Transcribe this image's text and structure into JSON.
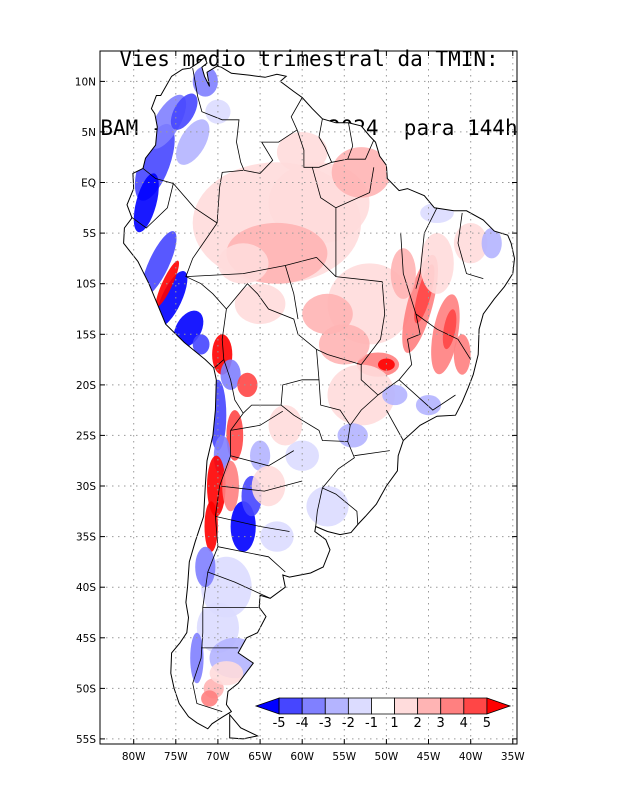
{
  "title": {
    "line1": "Vies medio trimestral da TMIN:",
    "line2": "BAM - SAMet 28/08/2024  para 144h"
  },
  "map": {
    "lon_range": [
      -84,
      -34.5
    ],
    "lat_range": [
      -55.5,
      13
    ],
    "grid": true,
    "grid_style": "dotted",
    "lat_ticks": [
      {
        "value": 10,
        "label": "10N"
      },
      {
        "value": 5,
        "label": "5N"
      },
      {
        "value": 0,
        "label": "EQ"
      },
      {
        "value": -5,
        "label": "5S"
      },
      {
        "value": -10,
        "label": "10S"
      },
      {
        "value": -15,
        "label": "15S"
      },
      {
        "value": -20,
        "label": "20S"
      },
      {
        "value": -25,
        "label": "25S"
      },
      {
        "value": -30,
        "label": "30S"
      },
      {
        "value": -35,
        "label": "35S"
      },
      {
        "value": -40,
        "label": "40S"
      },
      {
        "value": -45,
        "label": "45S"
      },
      {
        "value": -50,
        "label": "50S"
      },
      {
        "value": -55,
        "label": "55S"
      }
    ],
    "lon_ticks": [
      {
        "value": -80,
        "label": "80W"
      },
      {
        "value": -75,
        "label": "75W"
      },
      {
        "value": -70,
        "label": "70W"
      },
      {
        "value": -65,
        "label": "65W"
      },
      {
        "value": -60,
        "label": "60W"
      },
      {
        "value": -55,
        "label": "55W"
      },
      {
        "value": -50,
        "label": "50W"
      },
      {
        "value": -45,
        "label": "45W"
      },
      {
        "value": -40,
        "label": "40W"
      },
      {
        "value": -35,
        "label": "35W"
      }
    ]
  },
  "colorbar": {
    "labels": [
      "-5",
      "-4",
      "-3",
      "-2",
      "-1",
      "1",
      "2",
      "3",
      "4",
      "5"
    ],
    "colors": [
      "#0000ff",
      "#4646ff",
      "#8080ff",
      "#b4b4ff",
      "#dcdcff",
      "#ffffff",
      "#ffdcdc",
      "#ffb4b4",
      "#ff8080",
      "#ff4646",
      "#ff0000"
    ]
  },
  "colors": {
    "frame": "#000000",
    "grid": "#9a9a9a",
    "border": "#000000"
  }
}
